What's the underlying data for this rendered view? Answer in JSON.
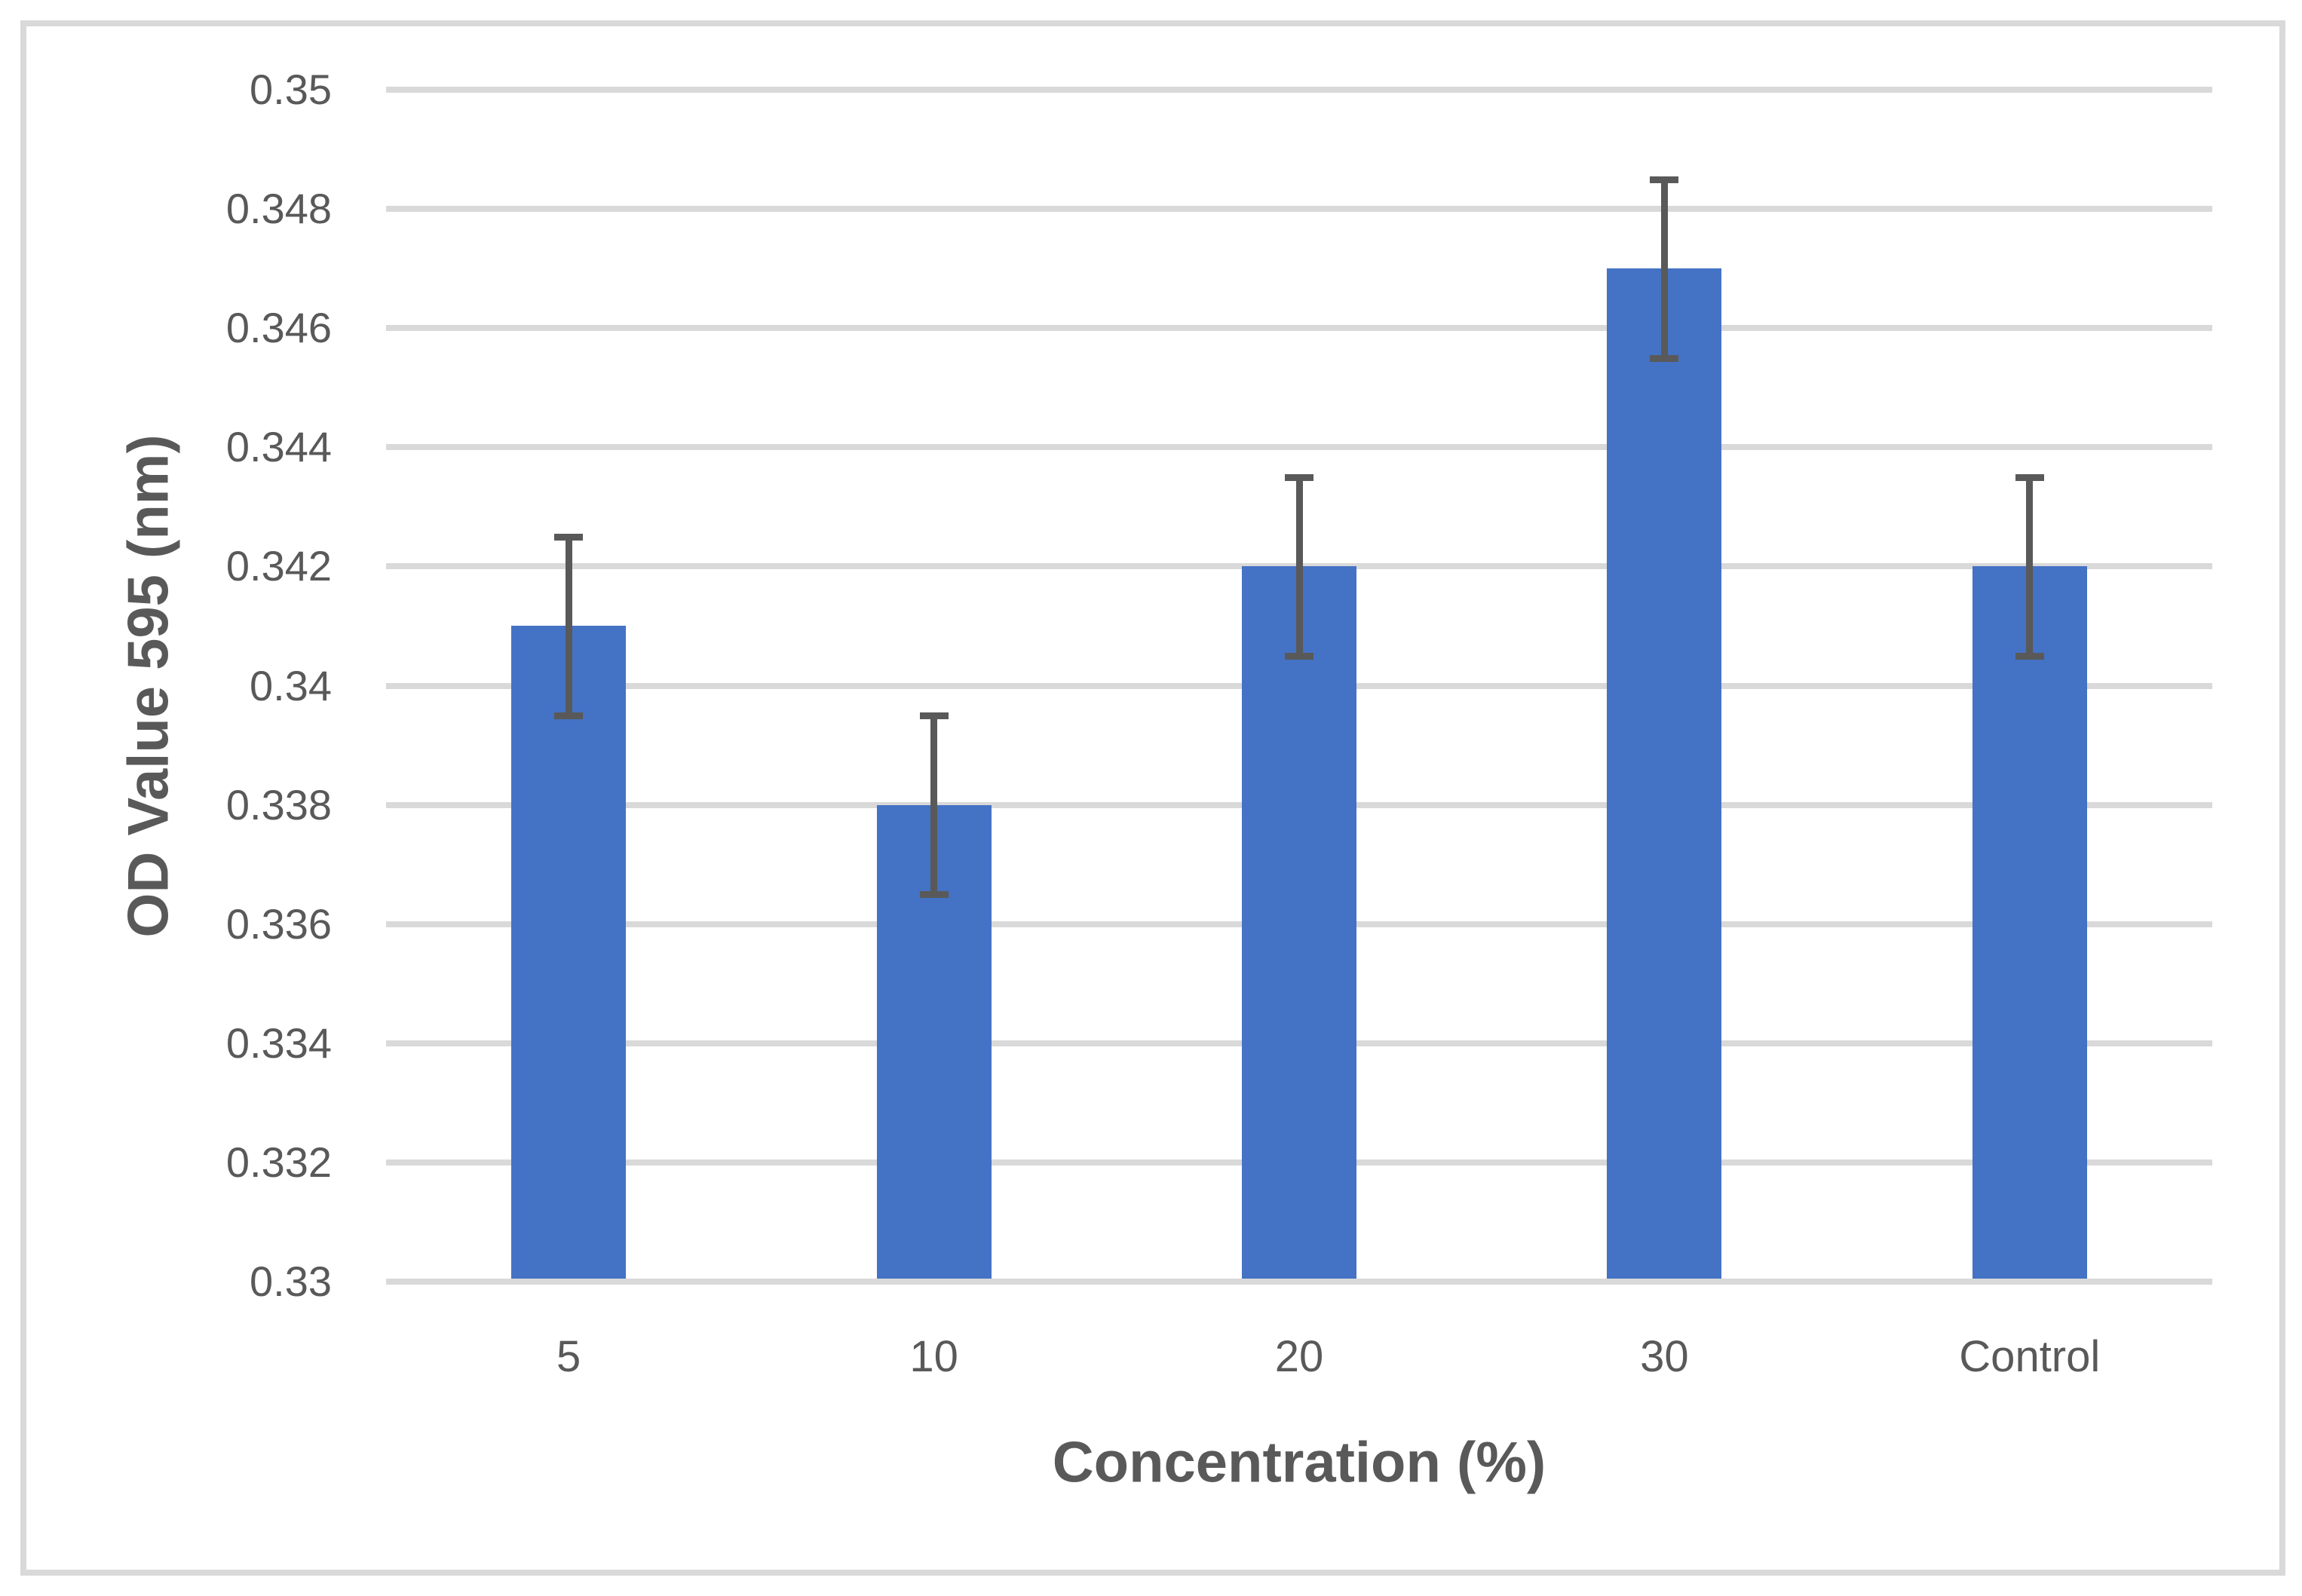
{
  "chart_data": {
    "type": "bar",
    "categories": [
      "5",
      "10",
      "20",
      "30",
      "Control"
    ],
    "values": [
      0.341,
      0.338,
      0.342,
      0.347,
      0.342
    ],
    "error_bars": [
      0.0015,
      0.0015,
      0.0015,
      0.0015,
      0.0015
    ],
    "title": "",
    "xlabel": "Concentration (%)",
    "ylabel": "OD Value 595 (nm)",
    "ylim": [
      0.33,
      0.35
    ],
    "ytick_step": 0.002,
    "yticks": [
      0.33,
      0.332,
      0.334,
      0.336,
      0.338,
      0.34,
      0.342,
      0.344,
      0.346,
      0.348,
      0.35
    ],
    "ytick_labels": [
      "0.33",
      "0.332",
      "0.334",
      "0.336",
      "0.338",
      "0.34",
      "0.342",
      "0.344",
      "0.346",
      "0.348",
      "0.35"
    ],
    "grid": true,
    "legend": "none",
    "colors": {
      "bar": "#4472C4",
      "error_bar": "#595959",
      "gridline": "#D9D9D9",
      "tick_label": "#595959",
      "axis_title": "#595959",
      "frame_border": "#D9D9D9",
      "background": "#FFFFFF"
    }
  }
}
